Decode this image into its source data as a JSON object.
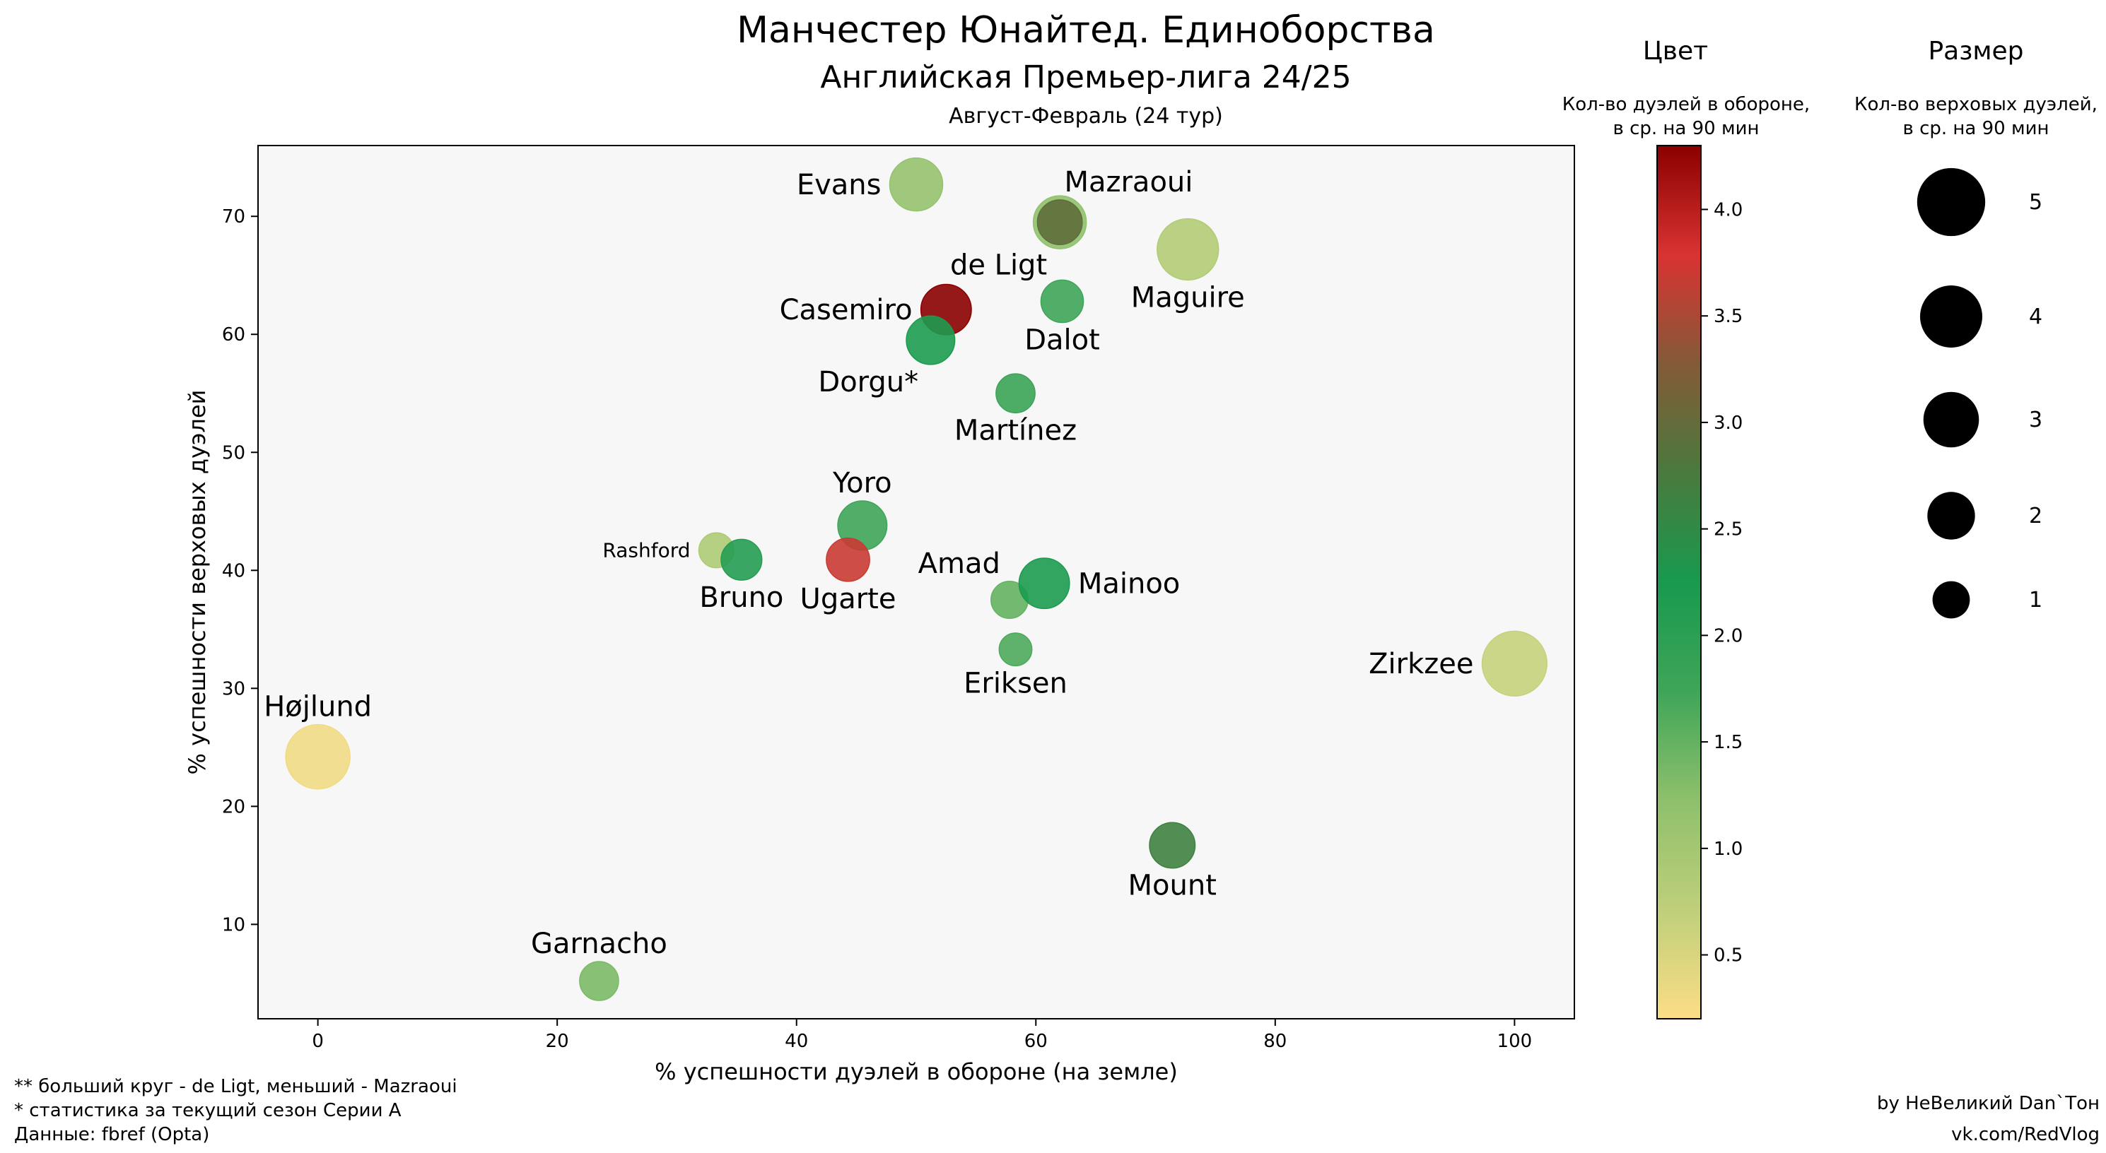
{
  "title": "Манчестер Юнайтед. Единоборства",
  "subtitle": "Английская Премьер-лига 24/25",
  "period": "Август-Февраль (24 тур)",
  "xlabel": "% успешности дуэлей в обороне (на земле)",
  "ylabel": "% успешности верховых дуэлей",
  "color_legend": {
    "header": "Цвет",
    "desc_line1": "Кол-во дуэлей в обороне,",
    "desc_line2": "в ср. на 90 мин",
    "ticks": [
      "0.5",
      "1.0",
      "1.5",
      "2.0",
      "2.5",
      "3.0",
      "3.5",
      "4.0"
    ],
    "tick_values": [
      0.5,
      1.0,
      1.5,
      2.0,
      2.5,
      3.0,
      3.5,
      4.0
    ],
    "range": [
      0.2,
      4.3
    ],
    "stops": [
      "#fcdd86",
      "#bfcf7a",
      "#8ec06c",
      "#3fa558",
      "#189a4f",
      "#4a7a3d",
      "#845a38",
      "#d93332",
      "#8b0000"
    ]
  },
  "size_legend": {
    "header": "Размер",
    "desc_line1": "Кол-во верховых дуэлей,",
    "desc_line2": "в ср. на 90 мин",
    "labels": [
      "5",
      "4",
      "3",
      "2",
      "1"
    ],
    "values": [
      5,
      4,
      3,
      2,
      1
    ]
  },
  "footnotes": {
    "line1": "** больший круг - de Ligt, меньший - Mazraoui",
    "line2": "* статистика за текущий сезон Серии А",
    "line3": "Данные: fbref (Opta)"
  },
  "credits": {
    "line1": "by НеВеликий Dan`Тон",
    "line2": "vk.com/RedVlog"
  },
  "chart_data": {
    "type": "scatter",
    "xlim": [
      -5,
      105
    ],
    "ylim": [
      2,
      76
    ],
    "xticks": [
      "0",
      "20",
      "40",
      "60",
      "80",
      "100"
    ],
    "xtick_values": [
      0,
      20,
      40,
      60,
      80,
      100
    ],
    "yticks": [
      "10",
      "20",
      "30",
      "40",
      "50",
      "60",
      "70"
    ],
    "ytick_values": [
      10,
      20,
      30,
      40,
      50,
      60,
      70
    ],
    "grid": false,
    "points": [
      {
        "name": "Evans",
        "x": 50.0,
        "y": 72.7,
        "aerial": 3.4,
        "def_duels": 1.15,
        "label_pos": "left"
      },
      {
        "name": "",
        "x": 62.0,
        "y": 69.5,
        "aerial": 3.4,
        "def_duels": 1.2
      },
      {
        "name": "Mazraoui",
        "x": 62.0,
        "y": 69.5,
        "aerial": 2.2,
        "def_duels": 2.95,
        "label_pos": "above-right"
      },
      {
        "name": "de Ligt",
        "x": 62.0,
        "y": 69.5,
        "aerial": 0,
        "def_duels": 0,
        "label_pos": "below-left"
      },
      {
        "name": "Maguire",
        "x": 72.7,
        "y": 67.2,
        "aerial": 4.9,
        "def_duels": 0.85,
        "label_pos": "below"
      },
      {
        "name": "Casemiro",
        "x": 52.5,
        "y": 62.1,
        "aerial": 3.0,
        "def_duels": 4.3,
        "label_pos": "left"
      },
      {
        "name": "Dalot",
        "x": 62.2,
        "y": 62.8,
        "aerial": 1.9,
        "def_duels": 1.75,
        "label_pos": "below"
      },
      {
        "name": "Dorgu*",
        "x": 51.2,
        "y": 59.5,
        "aerial": 2.7,
        "def_duels": 2.2,
        "label_pos": "below-left"
      },
      {
        "name": "Martínez",
        "x": 58.3,
        "y": 55.0,
        "aerial": 1.5,
        "def_duels": 1.8,
        "label_pos": "below"
      },
      {
        "name": "Yoro",
        "x": 45.5,
        "y": 43.8,
        "aerial": 2.8,
        "def_duels": 1.75,
        "label_pos": "above"
      },
      {
        "name": "Rashford",
        "x": 33.3,
        "y": 41.7,
        "aerial": 1.1,
        "def_duels": 0.9,
        "label_pos": "left"
      },
      {
        "name": "Bruno",
        "x": 35.4,
        "y": 40.9,
        "aerial": 1.7,
        "def_duels": 2.1,
        "label_pos": "below"
      },
      {
        "name": "Ugarte",
        "x": 44.3,
        "y": 40.9,
        "aerial": 2.0,
        "def_duels": 3.7,
        "label_pos": "below"
      },
      {
        "name": "Amad",
        "x": 57.8,
        "y": 37.5,
        "aerial": 1.3,
        "def_duels": 1.5,
        "label_pos": "above-left"
      },
      {
        "name": "Mainoo",
        "x": 60.7,
        "y": 38.9,
        "aerial": 3.0,
        "def_duels": 2.2,
        "label_pos": "right"
      },
      {
        "name": "Eriksen",
        "x": 58.3,
        "y": 33.3,
        "aerial": 0.9,
        "def_duels": 1.65,
        "label_pos": "below"
      },
      {
        "name": "Zirkzee",
        "x": 100.0,
        "y": 32.1,
        "aerial": 5.6,
        "def_duels": 0.65,
        "label_pos": "left"
      },
      {
        "name": "Højlund",
        "x": 0.0,
        "y": 24.2,
        "aerial": 5.5,
        "def_duels": 0.3,
        "label_pos": "above"
      },
      {
        "name": "Mount",
        "x": 71.4,
        "y": 16.7,
        "aerial": 2.3,
        "def_duels": 2.65,
        "label_pos": "below"
      },
      {
        "name": "Garnacho",
        "x": 23.5,
        "y": 5.2,
        "aerial": 1.5,
        "def_duels": 1.35,
        "label_pos": "above"
      }
    ]
  }
}
